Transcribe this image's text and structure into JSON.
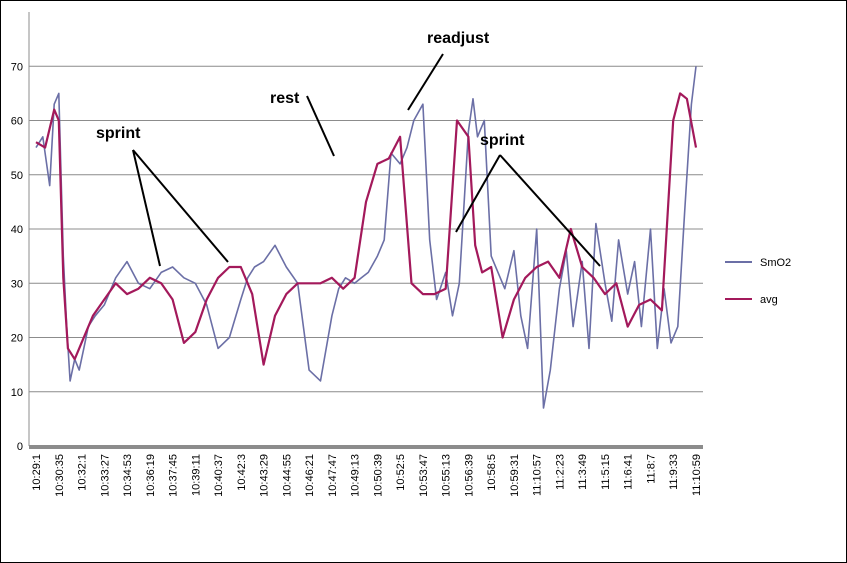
{
  "chart_data": {
    "type": "line",
    "title": "",
    "xlabel": "",
    "ylabel": "",
    "ylim": [
      0,
      80
    ],
    "yticks": [
      0,
      10,
      20,
      30,
      40,
      50,
      60,
      70
    ],
    "grid": true,
    "legend_position": "right",
    "x_tick_labels": [
      "10:29:1",
      "10:30:35",
      "10:32:1",
      "10:33:27",
      "10:34:53",
      "10:36:19",
      "10:37:45",
      "10:39:11",
      "10:40:37",
      "10:42:3",
      "10:43:29",
      "10:44:55",
      "10:46:21",
      "10:47:47",
      "10:49:13",
      "10:50:39",
      "10:52:5",
      "10:53:47",
      "10:55:13",
      "10:56:39",
      "10:58:5",
      "10:59:31",
      "11:10:57",
      "11:2:23",
      "11:3:49",
      "11:5:15",
      "11:6:41",
      "11:8:7",
      "11:9:33",
      "11:10:59"
    ],
    "series": [
      {
        "name": "SmO2",
        "color": "#6b6fa6",
        "x": [
          0,
          0.3,
          0.6,
          0.8,
          1.0,
          1.2,
          1.35,
          1.5,
          1.7,
          1.9,
          2.1,
          2.3,
          2.6,
          3.0,
          3.5,
          4.0,
          4.5,
          5.0,
          5.5,
          6.0,
          6.5,
          7.0,
          7.5,
          8.0,
          8.5,
          9.0,
          9.3,
          9.6,
          10.0,
          10.5,
          11.0,
          11.5,
          12.0,
          12.5,
          13.0,
          13.3,
          13.6,
          14.0,
          14.3,
          14.6,
          15.0,
          15.3,
          15.6,
          16.0,
          16.3,
          16.6,
          17.0,
          17.3,
          17.6,
          18.0,
          18.3,
          18.6,
          19.0,
          19.2,
          19.4,
          19.7,
          20.0,
          20.3,
          20.6,
          21.0,
          21.3,
          21.6,
          22.0,
          22.3,
          22.6,
          23.0,
          23.3,
          23.6,
          24.0,
          24.3,
          24.6,
          25.0,
          25.3,
          25.6,
          26.0,
          26.3,
          26.6,
          27.0,
          27.3,
          27.6,
          27.9,
          28.2,
          28.5,
          28.8,
          29.0
        ],
        "values": [
          55,
          57,
          48,
          63,
          65,
          35,
          22,
          12,
          16,
          14,
          18,
          22,
          24,
          26,
          31,
          34,
          30,
          29,
          32,
          33,
          31,
          30,
          26,
          18,
          20,
          27,
          31,
          33,
          34,
          37,
          33,
          30,
          14,
          12,
          24,
          29,
          31,
          30,
          31,
          32,
          35,
          38,
          54,
          52,
          55,
          60,
          63,
          38,
          27,
          32,
          24,
          30,
          58,
          64,
          57,
          60,
          35,
          32,
          29,
          36,
          24,
          18,
          40,
          7,
          14,
          29,
          36,
          22,
          34,
          18,
          41,
          30,
          23,
          38,
          28,
          34,
          22,
          40,
          18,
          29,
          19,
          22,
          43,
          63,
          70
        ]
      },
      {
        "name": "avg",
        "color": "#a3195b",
        "x": [
          0,
          0.4,
          0.8,
          1.0,
          1.2,
          1.4,
          1.7,
          2.0,
          2.5,
          3.0,
          3.5,
          4.0,
          4.5,
          5.0,
          5.5,
          6.0,
          6.5,
          7.0,
          7.5,
          8.0,
          8.5,
          9.0,
          9.5,
          10.0,
          10.5,
          11.0,
          11.5,
          12.0,
          12.5,
          13.0,
          13.5,
          14.0,
          14.5,
          15.0,
          15.5,
          16.0,
          16.5,
          17.0,
          17.5,
          18.0,
          18.5,
          19.0,
          19.3,
          19.6,
          20.0,
          20.5,
          21.0,
          21.5,
          22.0,
          22.5,
          23.0,
          23.5,
          24.0,
          24.5,
          25.0,
          25.5,
          26.0,
          26.5,
          27.0,
          27.5,
          28.0,
          28.3,
          28.6,
          29.0
        ],
        "values": [
          56,
          55,
          62,
          60,
          31,
          18,
          16,
          19,
          24,
          27,
          30,
          28,
          29,
          31,
          30,
          27,
          19,
          21,
          27,
          31,
          33,
          33,
          28,
          15,
          24,
          28,
          30,
          30,
          30,
          31,
          29,
          31,
          45,
          52,
          53,
          57,
          30,
          28,
          28,
          29,
          60,
          57,
          37,
          32,
          33,
          20,
          27,
          31,
          33,
          34,
          31,
          40,
          33,
          31,
          28,
          30,
          22,
          26,
          27,
          25,
          60,
          65,
          64,
          55
        ]
      }
    ],
    "annotations": [
      {
        "text": "sprint"
      },
      {
        "text": "rest"
      },
      {
        "text": "readjust"
      },
      {
        "text": "sprint"
      }
    ]
  }
}
